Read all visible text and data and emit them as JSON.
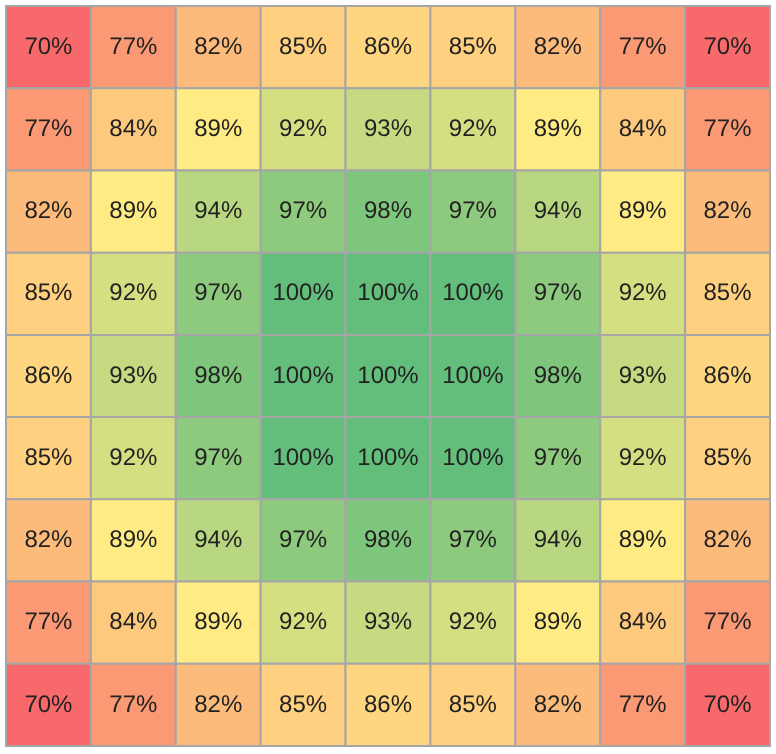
{
  "chart_data": {
    "type": "heatmap",
    "categories": [
      null,
      null,
      null,
      null,
      null,
      null,
      null,
      null,
      null
    ],
    "y_categories": [
      null,
      null,
      null,
      null,
      null,
      null,
      null,
      null,
      null
    ],
    "colors": [
      "#f8696b",
      "#ffeb84",
      "#63be7b"
    ],
    "cells": [
      [
        70,
        77,
        82,
        85,
        86,
        85,
        82,
        77,
        70
      ],
      [
        77,
        84,
        89,
        92,
        93,
        92,
        89,
        84,
        77
      ],
      [
        82,
        89,
        94,
        97,
        98,
        97,
        94,
        89,
        82
      ],
      [
        85,
        92,
        97,
        100,
        100,
        100,
        97,
        92,
        85
      ],
      [
        86,
        93,
        98,
        100,
        100,
        100,
        98,
        93,
        86
      ],
      [
        85,
        92,
        97,
        100,
        100,
        100,
        97,
        92,
        85
      ],
      [
        82,
        89,
        94,
        97,
        98,
        97,
        94,
        89,
        82
      ],
      [
        77,
        84,
        89,
        92,
        93,
        92,
        89,
        84,
        77
      ],
      [
        70,
        77,
        82,
        85,
        86,
        85,
        82,
        77,
        70
      ]
    ],
    "cell_labels": [
      [
        "70%",
        "77%",
        "82%",
        "85%",
        "86%",
        "85%",
        "82%",
        "77%",
        "70%"
      ],
      [
        "77%",
        "84%",
        "89%",
        "92%",
        "93%",
        "92%",
        "89%",
        "84%",
        "77%"
      ],
      [
        "82%",
        "89%",
        "94%",
        "97%",
        "98%",
        "97%",
        "94%",
        "89%",
        "82%"
      ],
      [
        "85%",
        "92%",
        "97%",
        "100%",
        "100%",
        "100%",
        "97%",
        "92%",
        "85%"
      ],
      [
        "86%",
        "93%",
        "98%",
        "100%",
        "100%",
        "100%",
        "98%",
        "93%",
        "86%"
      ],
      [
        "85%",
        "92%",
        "97%",
        "100%",
        "100%",
        "100%",
        "97%",
        "92%",
        "85%"
      ],
      [
        "82%",
        "89%",
        "94%",
        "97%",
        "98%",
        "97%",
        "94%",
        "89%",
        "82%"
      ],
      [
        "77%",
        "84%",
        "89%",
        "92%",
        "93%",
        "92%",
        "89%",
        "84%",
        "77%"
      ],
      [
        "70%",
        "77%",
        "82%",
        "85%",
        "86%",
        "85%",
        "82%",
        "77%",
        "70%"
      ]
    ]
  }
}
